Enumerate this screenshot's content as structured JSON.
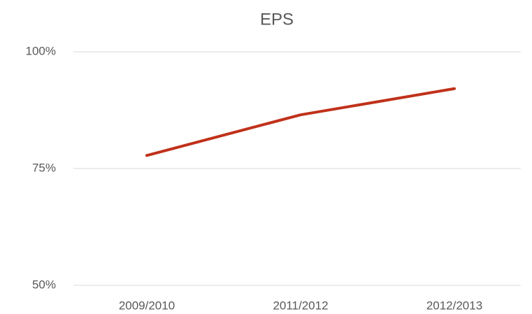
{
  "chart_data": {
    "type": "line",
    "title": "EPS",
    "categories": [
      "2009/2010",
      "2011/2012",
      "2012/2013"
    ],
    "values": [
      77.8,
      86.5,
      92.1
    ],
    "color": "#c0311a",
    "ylim": [
      50,
      100
    ],
    "yticks": [
      {
        "value": 50,
        "label": "50%"
      },
      {
        "value": 75,
        "label": "75%"
      },
      {
        "value": 100,
        "label": "100%"
      }
    ],
    "grid": true
  }
}
